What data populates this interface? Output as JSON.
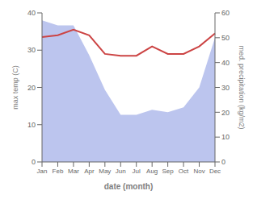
{
  "chart_data": {
    "type": "line",
    "xlabel": "date (month)",
    "ylabel": "max temp (C)",
    "y2label": "med. precipitation (kg/m2)",
    "categories": [
      "Jan",
      "Feb",
      "Mar",
      "Apr",
      "May",
      "Jun",
      "Jul",
      "Aug",
      "Sep",
      "Oct",
      "Nov",
      "Dec"
    ],
    "series": [
      {
        "type": "area",
        "axis": "y2",
        "color": "#bcc5ee",
        "values": [
          57.0,
          55.0,
          55.0,
          43.0,
          29.0,
          19.0,
          19.0,
          21.0,
          20.0,
          22.0,
          30.0,
          50.0
        ]
      },
      {
        "type": "line",
        "color": "#cc4444",
        "values": [
          33.5,
          34.0,
          35.5,
          34.0,
          29.0,
          28.5,
          28.5,
          31.0,
          29.0,
          29.0,
          31.0,
          34.5
        ]
      }
    ],
    "ylim": [
      0,
      40
    ],
    "yticks": [
      0,
      10,
      20,
      30,
      40
    ],
    "y2lim": [
      0,
      60
    ],
    "y2ticks": [
      0,
      10,
      20,
      30,
      40,
      50,
      60
    ],
    "grid": false
  }
}
